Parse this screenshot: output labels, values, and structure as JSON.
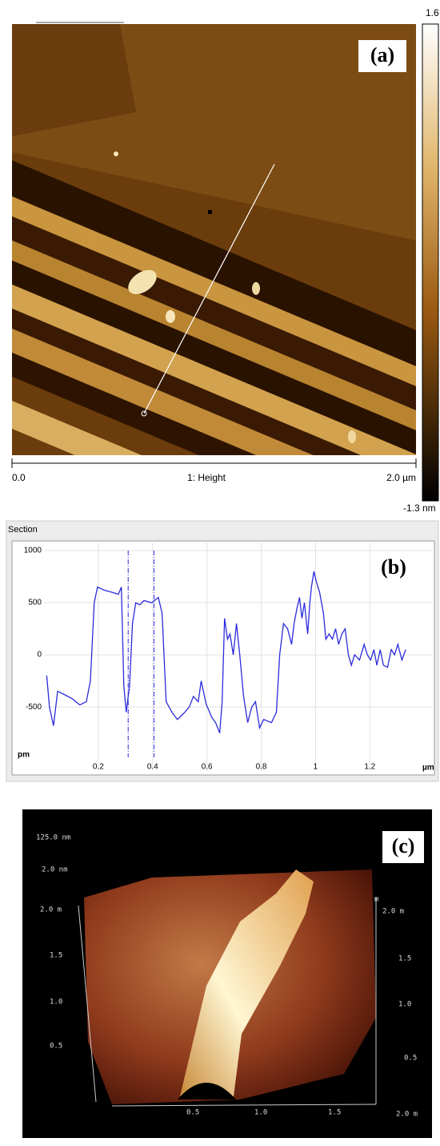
{
  "panel_a": {
    "label": "(a)",
    "scale_max": "1.6 nm",
    "scale_min": "-1.3 nm",
    "x_start": "0.0",
    "channel": "1: Height",
    "x_end": "2.0 µm"
  },
  "chart_data": {
    "type": "line",
    "title": "Section",
    "label": "(b)",
    "x_unit": "µm",
    "y_unit": "pm",
    "xlim": [
      0,
      1.37
    ],
    "ylim": [
      -960,
      1000
    ],
    "xticks": [
      0.2,
      0.4,
      0.6,
      0.8,
      1,
      1.2
    ],
    "yticks": [
      1000,
      500,
      0,
      -500
    ],
    "grid": true,
    "cursors": [
      0.31,
      0.405
    ],
    "series": [
      {
        "color": "#2b2bdc",
        "x": [
          0.01,
          0.02,
          0.035,
          0.05,
          0.074,
          0.103,
          0.132,
          0.156,
          0.171,
          0.185,
          0.197,
          0.221,
          0.25,
          0.274,
          0.285,
          0.294,
          0.303,
          0.315,
          0.326,
          0.338,
          0.353,
          0.368,
          0.397,
          0.421,
          0.435,
          0.45,
          0.471,
          0.491,
          0.515,
          0.535,
          0.55,
          0.568,
          0.579,
          0.597,
          0.618,
          0.632,
          0.647,
          0.656,
          0.665,
          0.676,
          0.685,
          0.697,
          0.709,
          0.721,
          0.735,
          0.75,
          0.765,
          0.779,
          0.794,
          0.809,
          0.838,
          0.856,
          0.868,
          0.882,
          0.897,
          0.912,
          0.921,
          0.932,
          0.941,
          0.95,
          0.959,
          0.971,
          0.979,
          0.985,
          0.994,
          1.003,
          1.015,
          1.029,
          1.038,
          1.05,
          1.062,
          1.074,
          1.085,
          1.097,
          1.109,
          1.121,
          1.132,
          1.144,
          1.162,
          1.179,
          1.191,
          1.203,
          1.215,
          1.226,
          1.238,
          1.25,
          1.265,
          1.279,
          1.291,
          1.303,
          1.318,
          1.332
        ],
        "values": [
          -200,
          -500,
          -680,
          -350,
          -380,
          -420,
          -480,
          -450,
          -250,
          500,
          650,
          620,
          600,
          580,
          650,
          -300,
          -550,
          -300,
          300,
          500,
          480,
          520,
          500,
          550,
          400,
          -450,
          -550,
          -620,
          -560,
          -500,
          -400,
          -450,
          -250,
          -470,
          -600,
          -650,
          -750,
          -450,
          350,
          150,
          200,
          0,
          300,
          0,
          -400,
          -650,
          -500,
          -450,
          -700,
          -620,
          -650,
          -550,
          0,
          300,
          250,
          100,
          300,
          450,
          550,
          350,
          500,
          200,
          500,
          650,
          800,
          700,
          600,
          400,
          150,
          200,
          150,
          250,
          100,
          200,
          250,
          0,
          -100,
          0,
          -50,
          100,
          0,
          -50,
          50,
          -100,
          50,
          -100,
          -120,
          50,
          0,
          100,
          -50,
          50
        ]
      }
    ]
  },
  "panel_c": {
    "label": "(c)",
    "z_max": "125.0 nm",
    "z_scale": "2.0 nm",
    "left_axis": [
      "2.0 m",
      "1.5",
      "1.0",
      "0.5"
    ],
    "right_axis": [
      "m",
      "2.0 m",
      "1.5",
      "1.0",
      "0.5"
    ],
    "bottom_axis": [
      "0.5",
      "1.0",
      "1.5",
      "2.0 m"
    ]
  }
}
